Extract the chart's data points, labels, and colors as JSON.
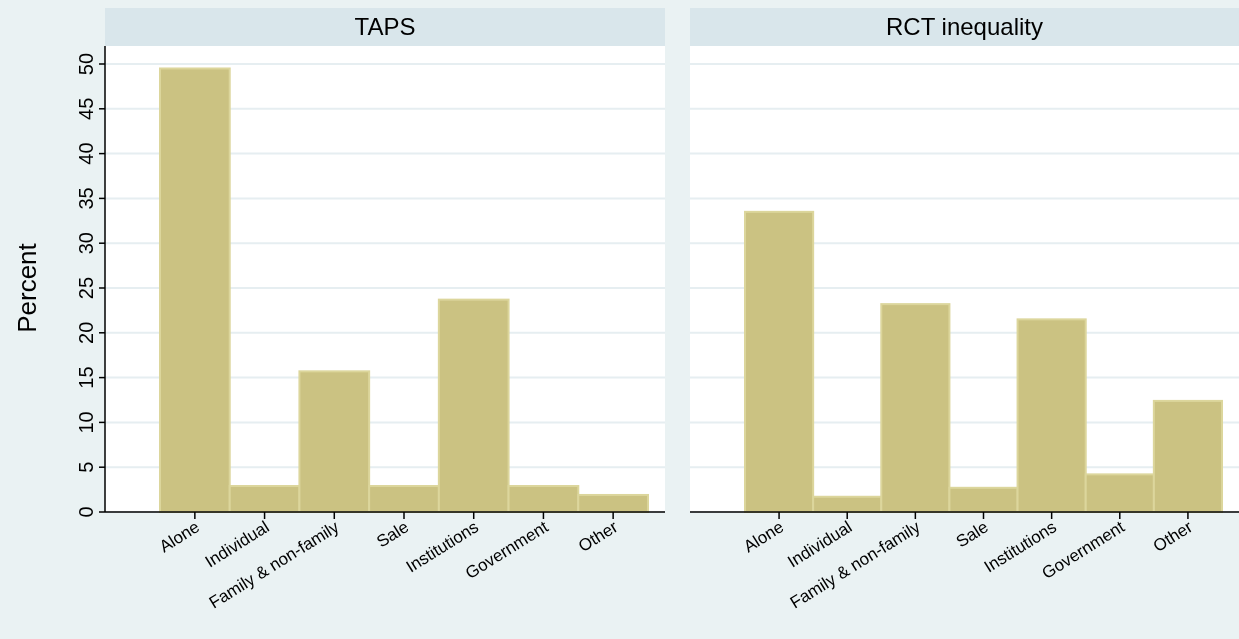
{
  "chart_data": [
    {
      "type": "bar",
      "title": "TAPS",
      "ylabel": "Percent",
      "categories": [
        "Alone",
        "Individual",
        "Family & non-family",
        "Sale",
        "Institutions",
        "Government",
        "Other"
      ],
      "values": [
        49.5,
        2.9,
        15.7,
        2.9,
        23.7,
        2.9,
        1.9
      ],
      "color": "#cbc282",
      "ylim": [
        0,
        50
      ],
      "yticks": [
        0,
        5,
        10,
        15,
        20,
        25,
        30,
        35,
        40,
        45,
        50
      ],
      "grid": "y"
    },
    {
      "type": "bar",
      "title": "RCT inequality",
      "categories": [
        "Alone",
        "Individual",
        "Family & non-family",
        "Sale",
        "Institutions",
        "Government",
        "Other"
      ],
      "values": [
        33.5,
        1.7,
        23.2,
        2.7,
        21.5,
        4.2,
        12.4
      ],
      "color": "#cbc282",
      "ylim": [
        0,
        50
      ],
      "yticks": [
        0,
        5,
        10,
        15,
        20,
        25,
        30,
        35,
        40,
        45,
        50
      ],
      "grid": "y",
      "tick_labels": "x"
    }
  ]
}
